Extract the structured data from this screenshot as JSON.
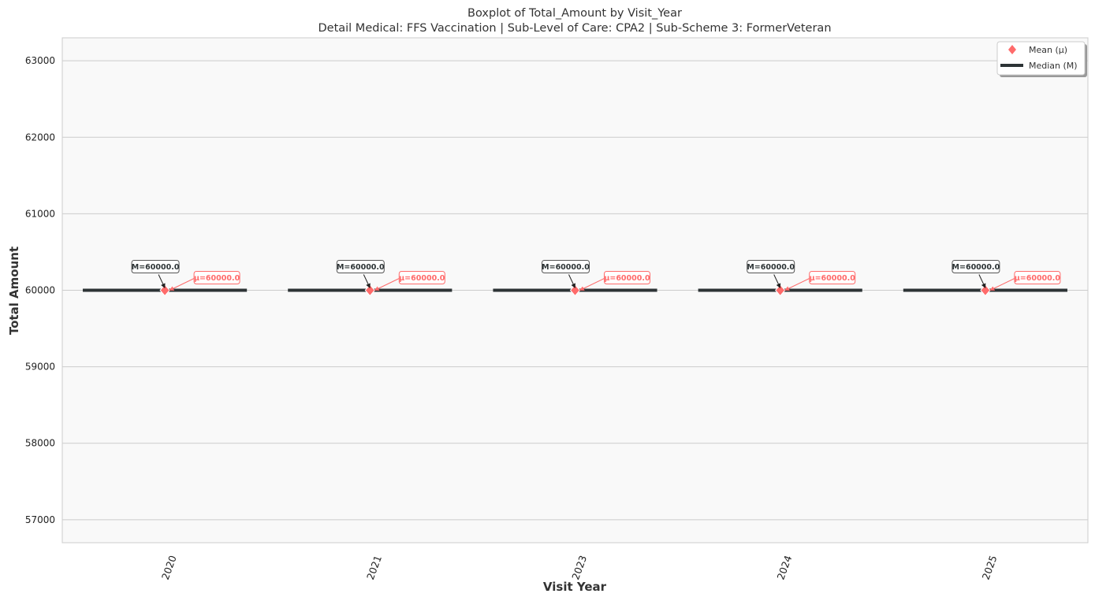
{
  "chart_data": {
    "type": "box",
    "title": "Boxplot of Total_Amount by Visit_Year",
    "subtitle": "Detail Medical: FFS Vaccination | Sub-Level of Care: CPA2 | Sub-Scheme 3: FormerVeteran",
    "xlabel": "Visit Year",
    "ylabel": "Total Amount",
    "categories": [
      "2020",
      "2021",
      "2023",
      "2024",
      "2025"
    ],
    "median": [
      60000,
      60000,
      60000,
      60000,
      60000
    ],
    "mean": [
      60000,
      60000,
      60000,
      60000,
      60000
    ],
    "median_labels": [
      "M=60000.0",
      "M=60000.0",
      "M=60000.0",
      "M=60000.0",
      "M=60000.0"
    ],
    "mean_labels": [
      "μ=60000.0",
      "μ=60000.0",
      "μ=60000.0",
      "μ=60000.0",
      "μ=60000.0"
    ],
    "ylim": [
      56700,
      63300
    ],
    "yticks": [
      57000,
      58000,
      59000,
      60000,
      61000,
      62000,
      63000
    ],
    "grid": true,
    "legend": {
      "placement": "top-right",
      "entries": [
        {
          "label": "Mean (μ)",
          "marker": "diamond",
          "color": "#ff6b6b"
        },
        {
          "label": "Median (M)",
          "marker": "line",
          "color": "#2d3436"
        }
      ]
    },
    "colors": {
      "mean": "#ff6b6b",
      "median": "#2d3436",
      "plot_bg": "#f9f9f9",
      "grid": "#cccccc"
    }
  }
}
